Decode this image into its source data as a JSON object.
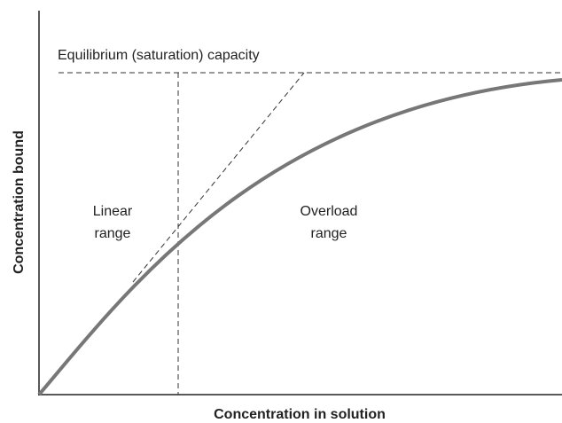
{
  "diagram": {
    "capacity_label": "Equilibrium (saturation) capacity",
    "linear_label": [
      "Linear",
      "range"
    ],
    "overload_label": [
      "Overload",
      "range"
    ],
    "y_axis_label": "Concentration bound",
    "x_axis_label": "Concentration in solution"
  }
}
